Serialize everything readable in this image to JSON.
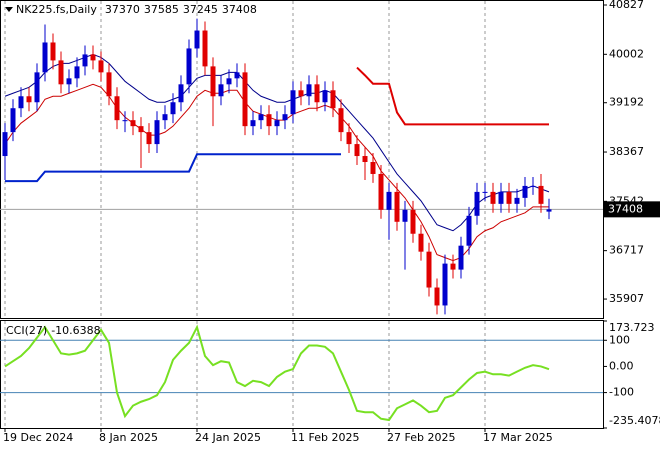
{
  "chart_data": {
    "type": "candlestick",
    "title": "NK225.fs,Daily",
    "categories": [
      "19 Dec 2024",
      null,
      null,
      null,
      null,
      null,
      null,
      null,
      null,
      null,
      null,
      null,
      "8 Jan 2025",
      null,
      null,
      null,
      null,
      null,
      null,
      null,
      null,
      null,
      null,
      null,
      "24 Jan 2025",
      null,
      null,
      null,
      null,
      null,
      null,
      null,
      null,
      null,
      null,
      null,
      "11 Feb 2025",
      null,
      null,
      null,
      null,
      null,
      null,
      null,
      null,
      null,
      null,
      null,
      "27 Feb 2025",
      null,
      null,
      null,
      null,
      null,
      null,
      null,
      null,
      null,
      null,
      null,
      "17 Mar 2025",
      null,
      null,
      null,
      null,
      null,
      null,
      null,
      null
    ],
    "open": [
      38300,
      38700,
      39100,
      39300,
      39200,
      39700,
      40200,
      39900,
      39500,
      39600,
      39800,
      40000,
      39900,
      39700,
      39300,
      38900,
      38900,
      38800,
      38700,
      38500,
      38900,
      39000,
      39200,
      39500,
      40100,
      40400,
      39800,
      39300,
      39500,
      39600,
      39700,
      38800,
      38900,
      39000,
      38800,
      38900,
      39000,
      39400,
      39300,
      39500,
      39200,
      39400,
      39100,
      38700,
      38500,
      38300,
      38200,
      38000,
      37400,
      37700,
      37200,
      37400,
      37000,
      36700,
      36100,
      35800,
      36500,
      36400,
      36800,
      37300,
      37700,
      37700,
      37500,
      37700,
      37500,
      37600,
      37800,
      37800,
      37370
    ],
    "high": [
      38850,
      39250,
      39450,
      39450,
      39850,
      40500,
      40350,
      40050,
      39750,
      39950,
      40150,
      40150,
      40050,
      39850,
      39450,
      39050,
      39050,
      38950,
      38850,
      39050,
      39150,
      39350,
      39650,
      40250,
      40600,
      40550,
      39950,
      39650,
      39750,
      39850,
      39850,
      39050,
      39150,
      39150,
      39050,
      39150,
      39550,
      39550,
      39650,
      39650,
      39550,
      39550,
      39250,
      38850,
      38650,
      38450,
      38350,
      38150,
      37850,
      37850,
      37550,
      37550,
      37150,
      36850,
      36250,
      36650,
      36650,
      36950,
      37450,
      37850,
      37850,
      37850,
      37850,
      37850,
      37750,
      37950,
      37950,
      38000,
      37585
    ],
    "low": [
      37900,
      38550,
      38950,
      39050,
      39050,
      39550,
      39750,
      39350,
      39350,
      39450,
      39650,
      39750,
      39550,
      39150,
      38750,
      38700,
      38650,
      38100,
      38350,
      38350,
      38750,
      38850,
      39050,
      39350,
      39950,
      39650,
      38800,
      39150,
      39350,
      39450,
      38650,
      38650,
      38750,
      38650,
      38650,
      38750,
      38850,
      39150,
      39150,
      39050,
      39050,
      38950,
      38550,
      38350,
      38150,
      37900,
      37850,
      37250,
      36900,
      37050,
      36400,
      36850,
      36550,
      35950,
      35650,
      35650,
      36250,
      36250,
      36650,
      37150,
      37550,
      37350,
      37350,
      37350,
      37350,
      37450,
      37650,
      37350,
      37245
    ],
    "close": [
      38700,
      39100,
      39300,
      39200,
      39700,
      40200,
      39900,
      39500,
      39600,
      39800,
      40000,
      39900,
      39700,
      39300,
      38900,
      38900,
      38800,
      38700,
      38500,
      38900,
      39000,
      39200,
      39500,
      40100,
      40400,
      39800,
      39300,
      39500,
      39600,
      39700,
      38800,
      38900,
      39000,
      38800,
      38900,
      39000,
      39400,
      39300,
      39500,
      39200,
      39400,
      39100,
      38700,
      38500,
      38300,
      38200,
      38000,
      37400,
      37700,
      37200,
      37400,
      37000,
      36700,
      36100,
      35800,
      36500,
      36400,
      36800,
      37300,
      37700,
      37700,
      37500,
      37700,
      37500,
      37600,
      37800,
      37800,
      37500,
      37408
    ],
    "up_color": "#0000cd",
    "down_color": "#e00000",
    "current_line_color": "#a0a0a0",
    "lines": [
      {
        "color": "#00008b",
        "weight": 1,
        "values": [
          39300,
          39350,
          39400,
          39450,
          39550,
          39700,
          39800,
          39850,
          39850,
          39900,
          39950,
          40000,
          39950,
          39850,
          39700,
          39550,
          39450,
          39350,
          39250,
          39200,
          39200,
          39250,
          39300,
          39450,
          39600,
          39650,
          39650,
          39650,
          39700,
          39700,
          39550,
          39400,
          39300,
          39250,
          39200,
          39200,
          39250,
          39300,
          39350,
          39350,
          39400,
          39350,
          39200,
          39050,
          38900,
          38750,
          38600,
          38400,
          38200,
          38000,
          37850,
          37700,
          37550,
          37350,
          37150,
          37100,
          37050,
          37150,
          37300,
          37500,
          37600,
          37650,
          37700,
          37700,
          37700,
          37750,
          37800,
          37750,
          37700
        ]
      },
      {
        "color": "#cc0000",
        "weight": 1,
        "values": [
          38500,
          38700,
          38850,
          38950,
          39050,
          39250,
          39300,
          39300,
          39350,
          39400,
          39450,
          39500,
          39450,
          39300,
          39100,
          38950,
          38850,
          38750,
          38650,
          38650,
          38700,
          38800,
          38950,
          39100,
          39300,
          39400,
          39350,
          39350,
          39400,
          39400,
          39200,
          39050,
          39000,
          38950,
          38900,
          38900,
          39000,
          39050,
          39100,
          39100,
          39150,
          39100,
          38950,
          38800,
          38600,
          38450,
          38300,
          38050,
          37900,
          37750,
          37600,
          37400,
          37200,
          36950,
          36650,
          36600,
          36550,
          36600,
          36750,
          36950,
          37050,
          37100,
          37200,
          37250,
          37300,
          37350,
          37450,
          37450,
          37450
        ]
      },
      {
        "color": "#0022cc",
        "weight": 2,
        "values": [
          37880,
          37880,
          37880,
          37880,
          37880,
          38040,
          38040,
          38040,
          38040,
          38040,
          38040,
          38040,
          38040,
          38040,
          38040,
          38040,
          38040,
          38040,
          38040,
          38040,
          38040,
          38040,
          38040,
          38040,
          38330,
          38330,
          38330,
          38330,
          38330,
          38330,
          38330,
          38330,
          38330,
          38330,
          38330,
          38330,
          38330,
          38330,
          38330,
          38330,
          38330,
          38330,
          38330,
          null,
          null,
          null,
          null,
          null,
          null,
          null,
          null,
          null,
          null,
          null,
          null,
          null,
          null,
          null,
          null,
          null,
          null,
          null,
          null,
          null,
          null,
          null,
          null,
          null,
          null
        ]
      },
      {
        "color": "#dd0000",
        "weight": 2,
        "values": [
          null,
          null,
          null,
          null,
          null,
          null,
          null,
          null,
          null,
          null,
          null,
          null,
          null,
          null,
          null,
          null,
          null,
          null,
          null,
          null,
          null,
          null,
          null,
          null,
          null,
          null,
          null,
          null,
          null,
          null,
          null,
          null,
          null,
          null,
          null,
          null,
          null,
          null,
          null,
          null,
          null,
          null,
          null,
          null,
          39780,
          39650,
          39510,
          39510,
          39510,
          39030,
          38830,
          38830,
          38830,
          38830,
          38830,
          38830,
          38830,
          38830,
          38830,
          38830,
          38830,
          38830,
          38830,
          38830,
          38830,
          38830,
          38830,
          38830,
          38830
        ]
      }
    ],
    "ylim": [
      35590,
      40894
    ],
    "yticks": [
      40827,
      40002,
      39192,
      38367,
      37542,
      36717,
      35907
    ],
    "grid": true,
    "indicator": {
      "title": "CCI(27)",
      "color": "#77e022",
      "level_color": "#4682b4",
      "levels": [
        100,
        -100
      ],
      "values": [
        0,
        20,
        40,
        70,
        110,
        150,
        100,
        50,
        45,
        50,
        60,
        100,
        140,
        90,
        -100,
        -190,
        -150,
        -135,
        -125,
        -110,
        -60,
        25,
        60,
        90,
        150,
        40,
        5,
        20,
        15,
        -60,
        -75,
        -55,
        -60,
        -75,
        -40,
        -20,
        -10,
        50,
        80,
        80,
        75,
        50,
        -20,
        -90,
        -170,
        -175,
        -175,
        -200,
        -205,
        -160,
        -145,
        -130,
        -150,
        -175,
        -170,
        -120,
        -110,
        -80,
        -50,
        -25,
        -20,
        -30,
        -30,
        -35,
        -20,
        -5,
        5,
        0,
        -10.6388
      ],
      "ylim": [
        -235.4078,
        173.723
      ],
      "yticks": [
        173.723,
        100,
        {
          "value": 0,
          "label": "0.00"
        },
        -100,
        -235.4078
      ]
    }
  }
}
